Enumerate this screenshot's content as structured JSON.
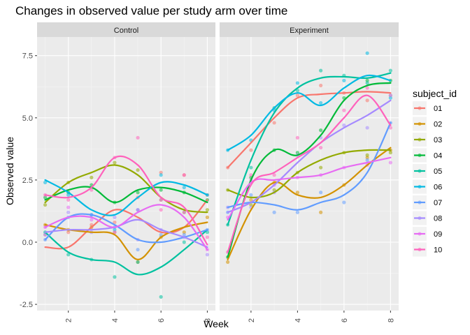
{
  "chart_data": {
    "type": "line",
    "title": "Changes in observed value per study arm over time",
    "xlabel": "Week",
    "ylabel": "Observed value",
    "x": [
      1,
      2,
      3,
      4,
      5,
      6,
      7,
      8
    ],
    "xticks": [
      2,
      4,
      6,
      8
    ],
    "yticks": [
      -2.5,
      0.0,
      2.5,
      5.0,
      7.5
    ],
    "ytick_labels": [
      "-2.5",
      "0.0",
      "2.5",
      "5.0",
      "7.5"
    ],
    "xlim": [
      0.65,
      8.35
    ],
    "ylim": [
      -2.75,
      8.25
    ],
    "grid": true,
    "legend": {
      "title": "subject_id",
      "position": "right"
    },
    "colors": {
      "01": "#F8766D",
      "02": "#D39200",
      "03": "#93AA00",
      "04": "#00BA38",
      "05": "#00C19F",
      "06": "#00B9E3",
      "07": "#619CFF",
      "08": "#DB72FB",
      "09": "#FF61C3",
      "10": "#FF61C3"
    },
    "subjects": [
      "01",
      "02",
      "03",
      "04",
      "05",
      "06",
      "07",
      "08",
      "09",
      "10"
    ],
    "series_colors": [
      "#F8766D",
      "#D39200",
      "#93AA00",
      "#00BA38",
      "#00C19F",
      "#00B9E3",
      "#619CFF",
      "#A58AFF",
      "#E76BF3",
      "#FF62BC"
    ],
    "panels": [
      {
        "name": "Control",
        "series": [
          {
            "subject": "01",
            "values": [
              0.3,
              0.4,
              0.7,
              0.8,
              1.8,
              2.8,
              2.7,
              1.9
            ]
          },
          {
            "subject": "02",
            "values": [
              0.7,
              0.5,
              0.6,
              0.4,
              -0.8,
              0.2,
              0.4,
              1.0
            ]
          },
          {
            "subject": "03",
            "values": [
              1.5,
              2.4,
              2.6,
              3.2,
              2.9,
              1.7,
              1.2,
              1.3
            ]
          },
          {
            "subject": "04",
            "values": [
              1.8,
              2.0,
              2.3,
              1.6,
              2.0,
              2.1,
              2.0,
              1.7
            ]
          },
          {
            "subject": "05",
            "values": [
              0.4,
              -0.5,
              -0.7,
              -1.4,
              -0.8,
              -2.2,
              0.0,
              0.4
            ]
          },
          {
            "subject": "06",
            "values": [
              2.4,
              1.9,
              1.1,
              0.5,
              1.3,
              2.7,
              2.2,
              1.9
            ]
          },
          {
            "subject": "07",
            "values": [
              0.1,
              1.0,
              1.1,
              0.6,
              -0.3,
              0.3,
              0.3,
              0.5
            ]
          },
          {
            "subject": "08",
            "values": [
              0.3,
              1.2,
              0.4,
              1.0,
              0.1,
              0.5,
              0.2,
              -0.5
            ]
          },
          {
            "subject": "09",
            "values": [
              0.6,
              1.4,
              0.9,
              0.4,
              1.3,
              1.7,
              1.2,
              -0.3
            ]
          },
          {
            "subject": "10",
            "values": [
              1.9,
              1.7,
              2.1,
              3.4,
              4.2,
              1.3,
              2.7,
              0.2
            ]
          }
        ]
      },
      {
        "name": "Experiment",
        "series": [
          {
            "subject": "01",
            "values": [
              3.0,
              3.7,
              4.8,
              5.9,
              6.3,
              6.0,
              5.7,
              5.9
            ]
          },
          {
            "subject": "02",
            "values": [
              -0.8,
              1.7,
              2.4,
              2.0,
              1.2,
              2.3,
              3.4,
              3.7
            ]
          },
          {
            "subject": "03",
            "values": [
              2.1,
              1.5,
              2.1,
              2.8,
              3.0,
              3.6,
              3.5,
              3.6
            ]
          },
          {
            "subject": "04",
            "values": [
              -0.6,
              2.6,
              3.7,
              3.6,
              4.5,
              5.8,
              6.5,
              6.5
            ]
          },
          {
            "subject": "05",
            "values": [
              0.7,
              3.0,
              5.4,
              6.1,
              6.9,
              6.7,
              6.4,
              6.9
            ]
          },
          {
            "subject": "06",
            "values": [
              3.7,
              4.1,
              5.3,
              6.4,
              5.6,
              6.5,
              7.6,
              5.8
            ]
          },
          {
            "subject": "07",
            "values": [
              1.2,
              1.9,
              1.2,
              1.2,
              2.0,
              1.6,
              3.3,
              4.8
            ]
          },
          {
            "subject": "08",
            "values": [
              1.4,
              1.4,
              2.0,
              3.5,
              4.2,
              4.7,
              4.6,
              5.9
            ]
          },
          {
            "subject": "09",
            "values": [
              1.0,
              2.5,
              2.3,
              2.6,
              2.7,
              3.0,
              3.1,
              3.2
            ]
          },
          {
            "subject": "10",
            "values": [
              -0.4,
              2.7,
              2.7,
              4.2,
              3.8,
              5.3,
              6.2,
              4.6
            ]
          }
        ],
        "smooth": [
          {
            "subject": "01",
            "values": [
              3.0,
              4.0,
              5.0,
              5.8,
              5.95,
              6.0,
              6.05,
              6.0
            ]
          },
          {
            "subject": "02",
            "values": [
              -0.7,
              1.3,
              2.4,
              1.9,
              1.8,
              2.3,
              3.1,
              3.8
            ]
          },
          {
            "subject": "03",
            "values": [
              2.1,
              1.8,
              2.0,
              2.8,
              3.3,
              3.6,
              3.7,
              3.7
            ]
          },
          {
            "subject": "04",
            "values": [
              -0.6,
              2.5,
              3.7,
              3.5,
              4.3,
              5.7,
              6.3,
              6.4
            ]
          },
          {
            "subject": "05",
            "values": [
              0.7,
              3.3,
              5.2,
              6.2,
              6.6,
              6.65,
              6.6,
              6.8
            ]
          },
          {
            "subject": "06",
            "values": [
              3.7,
              4.3,
              5.4,
              6.0,
              5.5,
              6.2,
              6.7,
              6.5
            ]
          },
          {
            "subject": "07",
            "values": [
              1.4,
              1.6,
              1.5,
              1.3,
              1.6,
              1.9,
              2.8,
              4.8
            ]
          },
          {
            "subject": "08",
            "values": [
              1.2,
              1.6,
              2.3,
              3.2,
              4.0,
              4.6,
              5.1,
              5.7
            ]
          },
          {
            "subject": "09",
            "values": [
              0.9,
              2.4,
              2.5,
              2.6,
              2.7,
              3.0,
              3.2,
              3.4
            ]
          },
          {
            "subject": "10",
            "values": [
              -0.4,
              2.3,
              2.8,
              3.4,
              4.0,
              5.0,
              5.9,
              4.7
            ]
          }
        ]
      }
    ],
    "control_smooth": [
      {
        "subject": "01",
        "values": [
          -0.2,
          -0.2,
          0.6,
          1.3,
          1.0,
          0.4,
          0.6,
          1.7
        ]
      },
      {
        "subject": "02",
        "values": [
          0.7,
          0.5,
          0.4,
          0.3,
          -0.7,
          0.2,
          0.6,
          0.8
        ]
      },
      {
        "subject": "03",
        "values": [
          1.6,
          2.4,
          2.8,
          3.1,
          2.7,
          1.8,
          1.3,
          1.2
        ]
      },
      {
        "subject": "04",
        "values": [
          1.7,
          2.1,
          2.2,
          1.6,
          2.1,
          2.2,
          2.0,
          1.6
        ]
      },
      {
        "subject": "05",
        "values": [
          0.4,
          -0.4,
          -0.7,
          -0.8,
          -1.3,
          -1.0,
          -0.3,
          0.5
        ]
      },
      {
        "subject": "06",
        "values": [
          2.5,
          2.0,
          1.3,
          1.1,
          1.8,
          2.4,
          2.3,
          1.9
        ]
      },
      {
        "subject": "07",
        "values": [
          0.1,
          1.0,
          1.1,
          0.7,
          0.1,
          0.0,
          0.2,
          0.5
        ]
      },
      {
        "subject": "08",
        "values": [
          0.4,
          0.5,
          0.5,
          0.6,
          0.9,
          0.5,
          0.2,
          -0.2
        ]
      },
      {
        "subject": "09",
        "values": [
          0.6,
          1.0,
          1.0,
          0.6,
          1.2,
          1.5,
          1.0,
          -0.3
        ]
      },
      {
        "subject": "10",
        "values": [
          1.9,
          1.8,
          2.2,
          3.4,
          3.1,
          1.8,
          1.4,
          -0.1
        ]
      }
    ]
  }
}
